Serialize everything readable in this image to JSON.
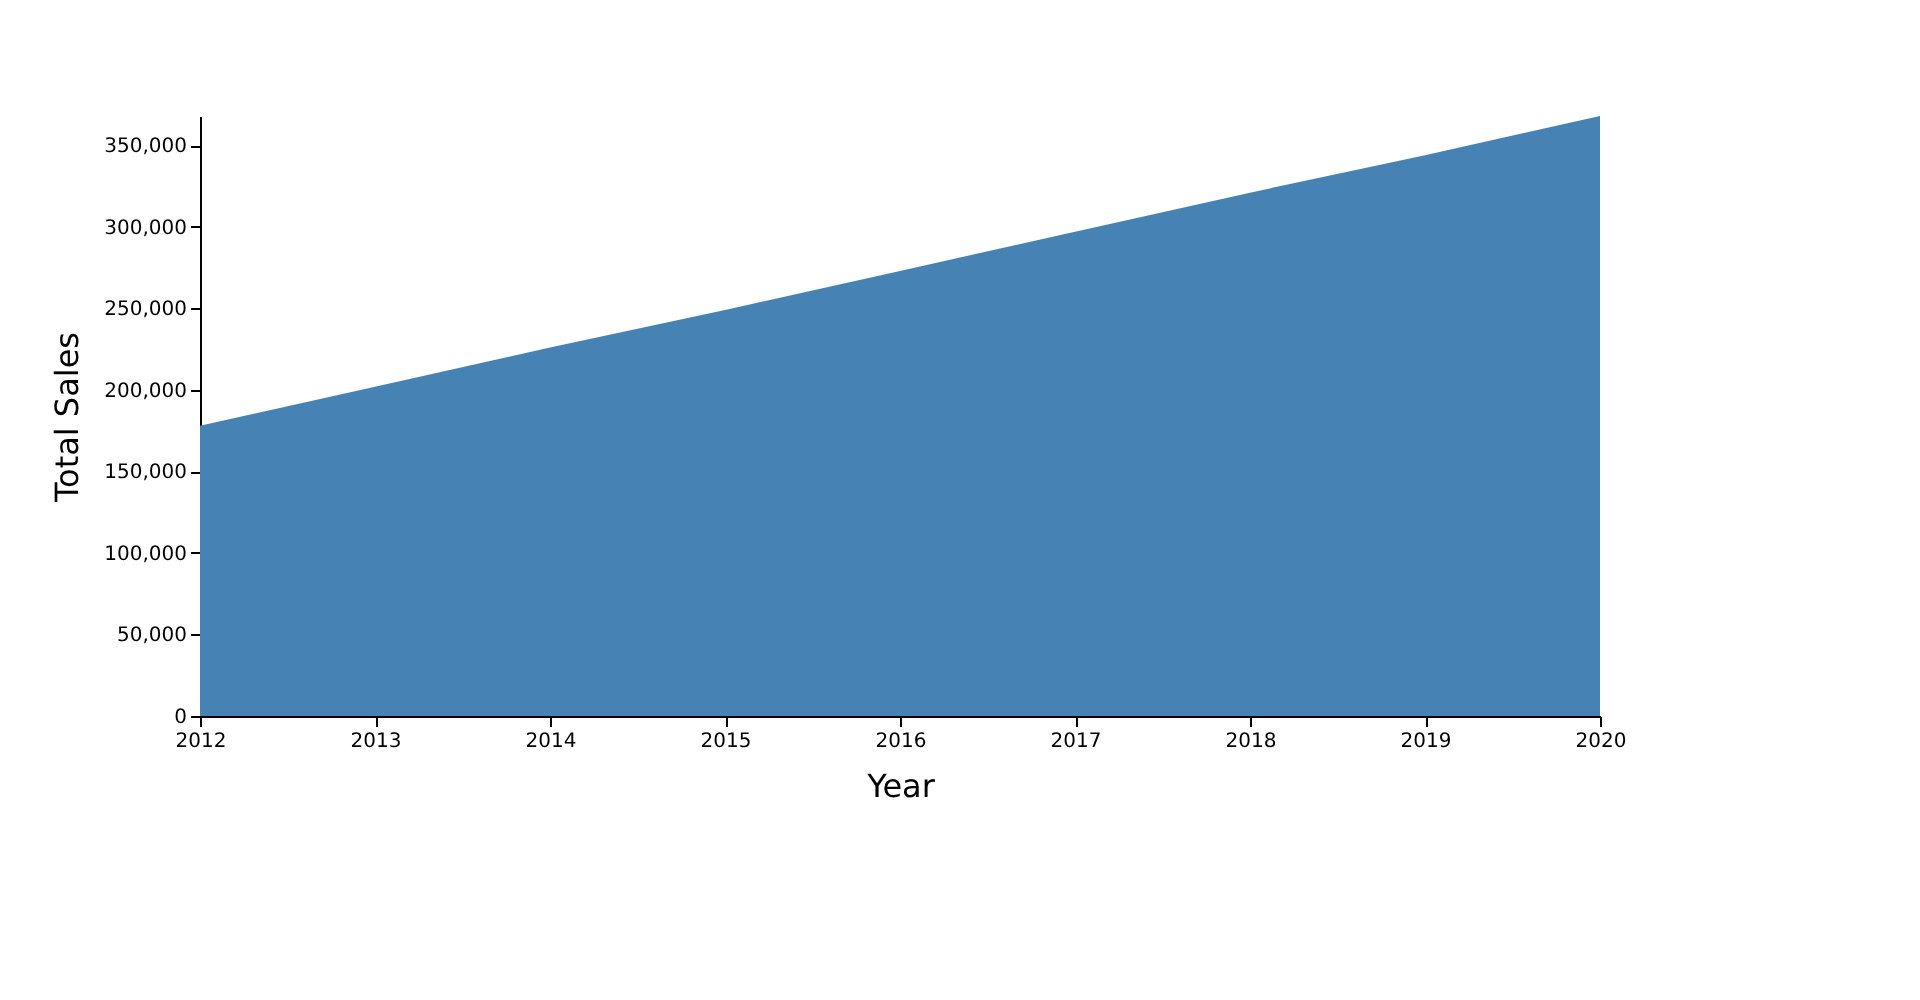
{
  "chart_data": {
    "type": "area",
    "xlabel": "Year",
    "ylabel": "Total Sales",
    "x": [
      2012,
      2013,
      2014,
      2015,
      2016,
      2017,
      2018,
      2019,
      2020
    ],
    "series": [
      {
        "color": "#4682b4",
        "values": [
          178000,
          202000,
          226000,
          249000,
          273000,
          297000,
          321000,
          344000,
          368000
        ]
      }
    ],
    "xlim": [
      2012,
      2020
    ],
    "xticks": [
      2012,
      2013,
      2014,
      2015,
      2016,
      2017,
      2018,
      2019,
      2020
    ],
    "ylim": [
      0,
      368000
    ],
    "yticks": [
      {
        "value": 0,
        "label": "0"
      },
      {
        "value": 50000,
        "label": "50,000"
      },
      {
        "value": 100000,
        "label": "100,000"
      },
      {
        "value": 150000,
        "label": "150,000"
      },
      {
        "value": 200000,
        "label": "200,000"
      },
      {
        "value": 250000,
        "label": "250,000"
      },
      {
        "value": 300000,
        "label": "300,000"
      },
      {
        "value": 350000,
        "label": "350,000"
      }
    ],
    "grid": false
  }
}
